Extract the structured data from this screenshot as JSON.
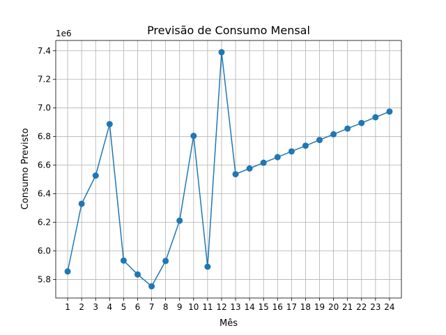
{
  "chart_data": {
    "type": "line",
    "title": "Previsão de Consumo Mensal",
    "xlabel": "Mês",
    "ylabel": "Consumo Previsto",
    "y_offset_label": "1e6",
    "categories": [
      "1",
      "2",
      "3",
      "4",
      "5",
      "6",
      "7",
      "8",
      "9",
      "10",
      "11",
      "12",
      "13",
      "14",
      "15",
      "16",
      "17",
      "18",
      "19",
      "20",
      "21",
      "22",
      "23",
      "24"
    ],
    "series": [
      {
        "color": "#1f77b4",
        "marker": "circle",
        "values": [
          5.857,
          6.33,
          6.527,
          6.887,
          5.933,
          5.836,
          5.753,
          5.93,
          6.212,
          6.805,
          5.89,
          7.39,
          6.537,
          6.577,
          6.617,
          6.656,
          6.696,
          6.736,
          6.776,
          6.816,
          6.856,
          6.895,
          6.935,
          6.975
        ]
      }
    ],
    "x_ticks": [
      "1",
      "2",
      "3",
      "4",
      "5",
      "6",
      "7",
      "8",
      "9",
      "10",
      "11",
      "12",
      "13",
      "14",
      "15",
      "16",
      "17",
      "18",
      "19",
      "20",
      "21",
      "22",
      "23",
      "24"
    ],
    "y_ticks": [
      "5.8",
      "6.0",
      "6.2",
      "6.4",
      "6.6",
      "6.8",
      "7.0",
      "7.2",
      "7.4"
    ],
    "y_tick_values": [
      5.8,
      6.0,
      6.2,
      6.4,
      6.6,
      6.8,
      7.0,
      7.2,
      7.4
    ],
    "xlim": [
      0.15,
      24.85
    ],
    "ylim": [
      5.671,
      7.472
    ],
    "grid": true
  }
}
